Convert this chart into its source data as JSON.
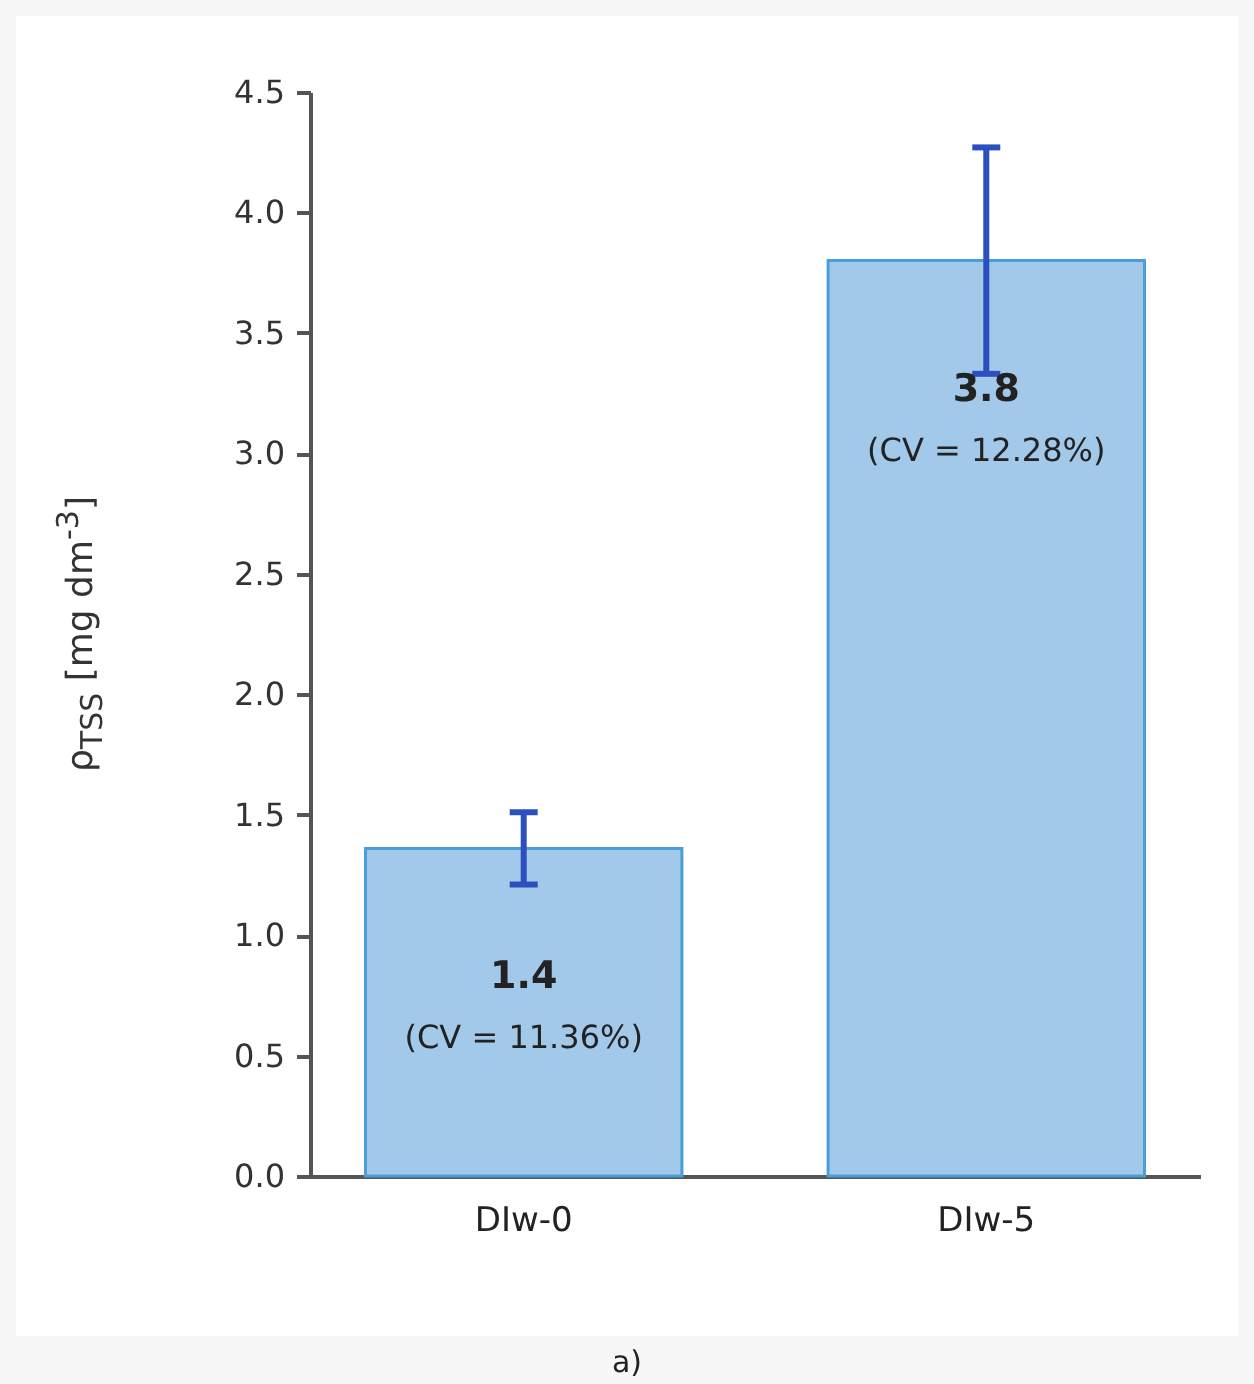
{
  "chart_data": {
    "type": "bar",
    "ylabel": "ρ$_{TSS}$ [mg dm$^{-3}$]",
    "categories": [
      "DIw-0",
      "DIw-5"
    ],
    "values": [
      1.36,
      3.8
    ],
    "errors": [
      0.15,
      0.47
    ],
    "color": "#a3c9ea",
    "value_labels": [
      "1.4",
      "3.8"
    ],
    "ylim": [
      0,
      4.5
    ],
    "yticks": [
      {
        "value": 0,
        "label": "0.0"
      },
      {
        "value": 0.5,
        "label": "0.5"
      },
      {
        "value": 1,
        "label": "1.0"
      },
      {
        "value": 1.5,
        "label": "1.5"
      },
      {
        "value": 2,
        "label": "2.0"
      },
      {
        "value": 2.5,
        "label": "2.5"
      },
      {
        "value": 3,
        "label": "3.0"
      },
      {
        "value": 3.5,
        "label": "3.5"
      },
      {
        "value": 4,
        "label": "4.0"
      },
      {
        "value": 4.5,
        "label": "4.5"
      }
    ],
    "grid": false,
    "annotations": [
      "(CV = 11.36%)",
      "(CV = 12.28%)",
      "a)"
    ]
  }
}
